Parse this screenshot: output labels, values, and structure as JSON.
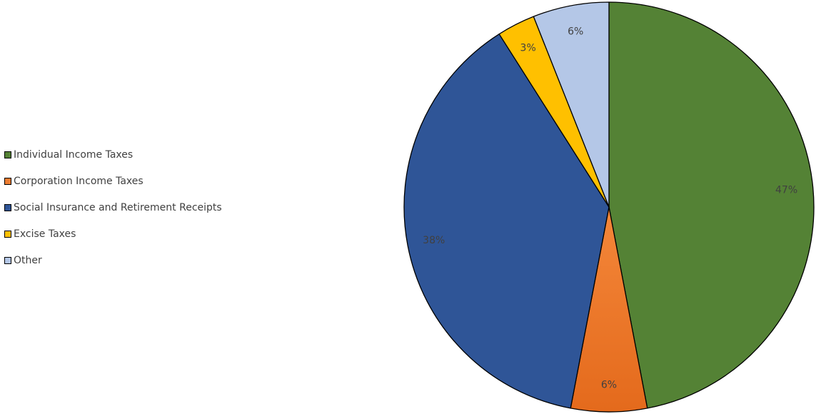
{
  "chart_data": {
    "type": "pie",
    "categories": [
      "Individual Income Taxes",
      "Corporation Income Taxes",
      "Social Insurance and Retirement Receipts",
      "Excise Taxes",
      "Other"
    ],
    "values": [
      47,
      6,
      38,
      3,
      6
    ],
    "data_labels": [
      "47%",
      "6%",
      "38%",
      "3%",
      "6%"
    ],
    "colors": [
      "#548235",
      "#ED7D31",
      "#2F5597",
      "#FFC000",
      "#B4C7E7"
    ],
    "legend_position": "left",
    "title": ""
  }
}
